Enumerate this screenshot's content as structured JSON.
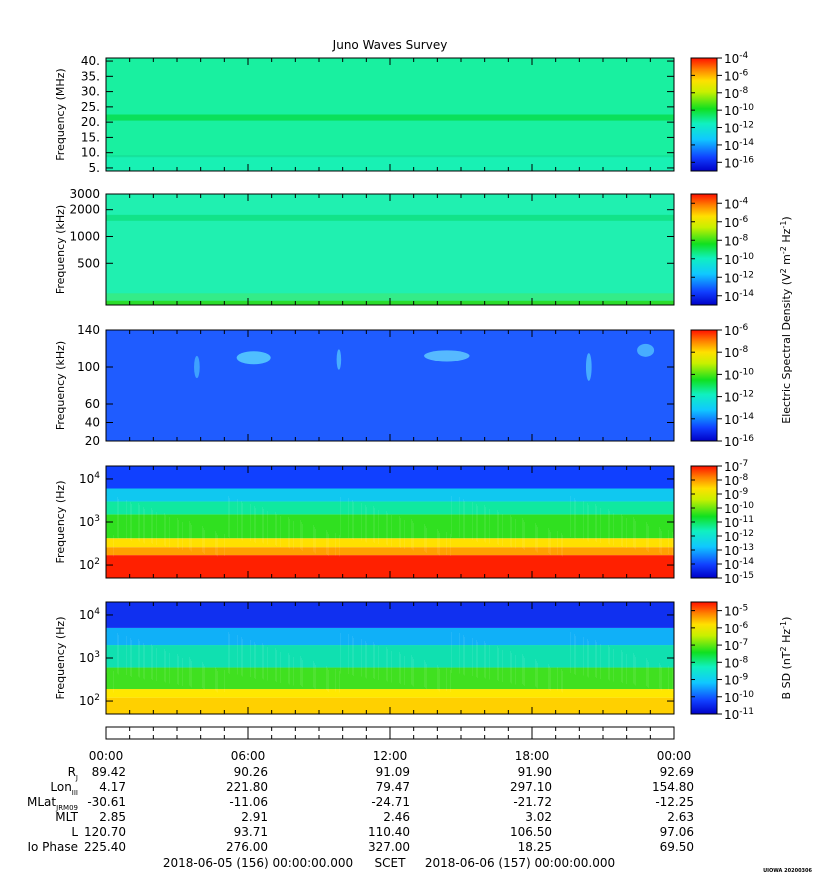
{
  "chart_data": {
    "type": "heatmap",
    "title": "Juno Waves Survey",
    "panels": [
      {
        "ylabel": "Frequency (MHz)",
        "yscale": "linear",
        "ylim": [
          4,
          41
        ],
        "yticks": [
          {
            "v": 5,
            "label": "5."
          },
          {
            "v": 10,
            "label": "10."
          },
          {
            "v": 15,
            "label": "15."
          },
          {
            "v": 20,
            "label": "20."
          },
          {
            "v": 25,
            "label": "25."
          },
          {
            "v": 30,
            "label": "30."
          },
          {
            "v": 35,
            "label": "35."
          },
          {
            "v": 40,
            "label": "40."
          }
        ],
        "background": "#19f0a0",
        "bands": [
          {
            "from": 4,
            "to": 9,
            "color": "#18f2c8",
            "opacity": 0.5
          },
          {
            "from": 20.5,
            "to": 22.5,
            "color": "#0ae05a",
            "opacity": 1
          },
          {
            "from": 8.5,
            "to": 9.2,
            "color": "#14d890",
            "opacity": 0.6
          }
        ],
        "colorbar": {
          "min": -17,
          "max": -4,
          "ticks": [
            {
              "v": -4,
              "base": "10",
              "exp": "-4"
            },
            {
              "v": -6,
              "base": "10",
              "exp": "-6"
            },
            {
              "v": -8,
              "base": "10",
              "exp": "-8"
            },
            {
              "v": -10,
              "base": "10",
              "exp": "-10"
            },
            {
              "v": -12,
              "base": "10",
              "exp": "-12"
            },
            {
              "v": -14,
              "base": "10",
              "exp": "-14"
            },
            {
              "v": -16,
              "base": "10",
              "exp": "-16"
            }
          ]
        }
      },
      {
        "ylabel": "Frequency (kHz)",
        "yscale": "log",
        "ylim": [
          170,
          3000
        ],
        "yticks": [
          {
            "v": 3000,
            "label": "3000"
          },
          {
            "v": 2000,
            "label": "2000"
          },
          {
            "v": 1000,
            "label": "1000"
          },
          {
            "v": 500,
            "label": "500"
          }
        ],
        "background": "#20f0b0",
        "bands": [
          {
            "from": 1500,
            "to": 1750,
            "color": "#0fe080",
            "opacity": 0.8
          },
          {
            "from": 170,
            "to": 190,
            "color": "#2bdc2b",
            "opacity": 1
          },
          {
            "from": 190,
            "to": 230,
            "color": "#48e860",
            "opacity": 0.5
          }
        ],
        "colorbar": {
          "min": -15,
          "max": -3,
          "label_prefix": "Electric Spectral Density (V",
          "label_units": "m",
          "label_hz": "Hz",
          "label_sup1": "2",
          "label_sup2": "-2",
          "label_sup3": "-1",
          "ticks": [
            {
              "v": -4,
              "base": "10",
              "exp": "-4"
            },
            {
              "v": -6,
              "base": "10",
              "exp": "-6"
            },
            {
              "v": -8,
              "base": "10",
              "exp": "-8"
            },
            {
              "v": -10,
              "base": "10",
              "exp": "-10"
            },
            {
              "v": -12,
              "base": "10",
              "exp": "-12"
            },
            {
              "v": -14,
              "base": "10",
              "exp": "-14"
            }
          ]
        }
      },
      {
        "ylabel": "Frequency (kHz)",
        "yscale": "linear",
        "ylim": [
          20,
          140
        ],
        "yticks": [
          {
            "v": 20,
            "label": "20"
          },
          {
            "v": 40,
            "label": "40"
          },
          {
            "v": 60,
            "label": "60"
          },
          {
            "v": 100,
            "label": "100"
          },
          {
            "v": 140,
            "label": "140"
          }
        ],
        "background": "#1f5cff",
        "bands": [],
        "blobs": [
          {
            "x": 0.26,
            "y": 110,
            "w": 0.06,
            "h": 14,
            "color": "#60e0ff"
          },
          {
            "x": 0.6,
            "y": 112,
            "w": 0.08,
            "h": 12,
            "color": "#6ad8ff"
          },
          {
            "x": 0.41,
            "y": 108,
            "w": 0.008,
            "h": 22,
            "color": "#55c8ff"
          },
          {
            "x": 0.85,
            "y": 100,
            "w": 0.01,
            "h": 30,
            "color": "#55c8ff"
          },
          {
            "x": 0.95,
            "y": 118,
            "w": 0.03,
            "h": 14,
            "color": "#55c8ff"
          },
          {
            "x": 0.16,
            "y": 100,
            "w": 0.01,
            "h": 24,
            "color": "#4ab8ff"
          }
        ],
        "colorbar": {
          "min": -16,
          "max": -6,
          "ticks": [
            {
              "v": -6,
              "base": "10",
              "exp": "-6"
            },
            {
              "v": -8,
              "base": "10",
              "exp": "-8"
            },
            {
              "v": -10,
              "base": "10",
              "exp": "-10"
            },
            {
              "v": -12,
              "base": "10",
              "exp": "-12"
            },
            {
              "v": -14,
              "base": "10",
              "exp": "-14"
            },
            {
              "v": -16,
              "base": "10",
              "exp": "-16"
            }
          ]
        }
      },
      {
        "ylabel": "Frequency (Hz)",
        "yscale": "log",
        "ylim": [
          50,
          20000
        ],
        "yticks": [
          {
            "v": 10000,
            "base": "10",
            "exp": "4"
          },
          {
            "v": 1000,
            "base": "10",
            "exp": "3"
          },
          {
            "v": 100,
            "base": "10",
            "exp": "2"
          }
        ],
        "layers": [
          {
            "from": 50,
            "to": 170,
            "color": "#ff2000"
          },
          {
            "from": 170,
            "to": 260,
            "color": "#ffa000"
          },
          {
            "from": 260,
            "to": 420,
            "color": "#ffe000"
          },
          {
            "from": 420,
            "to": 1500,
            "color": "#30e020"
          },
          {
            "from": 1500,
            "to": 3000,
            "color": "#10e8a0"
          },
          {
            "from": 3000,
            "to": 6000,
            "color": "#10c8f0"
          },
          {
            "from": 6000,
            "to": 20000,
            "color": "#1040ff"
          }
        ],
        "colorbar": {
          "min": -15,
          "max": -7,
          "ticks": [
            {
              "v": -7,
              "base": "10",
              "exp": "-7"
            },
            {
              "v": -8,
              "base": "10",
              "exp": "-8"
            },
            {
              "v": -9,
              "base": "10",
              "exp": "-9"
            },
            {
              "v": -10,
              "base": "10",
              "exp": "-10"
            },
            {
              "v": -11,
              "base": "10",
              "exp": "-11"
            },
            {
              "v": -12,
              "base": "10",
              "exp": "-12"
            },
            {
              "v": -13,
              "base": "10",
              "exp": "-13"
            },
            {
              "v": -14,
              "base": "10",
              "exp": "-14"
            },
            {
              "v": -15,
              "base": "10",
              "exp": "-15"
            }
          ]
        }
      },
      {
        "ylabel": "Frequency (Hz)",
        "yscale": "log",
        "ylim": [
          50,
          20000
        ],
        "yticks": [
          {
            "v": 10000,
            "base": "10",
            "exp": "4"
          },
          {
            "v": 1000,
            "base": "10",
            "exp": "3"
          },
          {
            "v": 100,
            "base": "10",
            "exp": "2"
          }
        ],
        "layers": [
          {
            "from": 50,
            "to": 120,
            "color": "#ffd000"
          },
          {
            "from": 120,
            "to": 190,
            "color": "#ffe800"
          },
          {
            "from": 190,
            "to": 600,
            "color": "#40e020"
          },
          {
            "from": 600,
            "to": 2000,
            "color": "#10e0b0"
          },
          {
            "from": 2000,
            "to": 5000,
            "color": "#10b0f8"
          },
          {
            "from": 5000,
            "to": 20000,
            "color": "#1030f0"
          }
        ],
        "colorbar": {
          "min": -11,
          "max": -4.5,
          "label": "B SD (nT",
          "label_sup1": "2",
          "label_hz": "Hz",
          "label_sup2": "-1",
          "ticks": [
            {
              "v": -5,
              "base": "10",
              "exp": "-5"
            },
            {
              "v": -6,
              "base": "10",
              "exp": "-6"
            },
            {
              "v": -7,
              "base": "10",
              "exp": "-7"
            },
            {
              "v": -8,
              "base": "10",
              "exp": "-8"
            },
            {
              "v": -9,
              "base": "10",
              "exp": "-9"
            },
            {
              "v": -10,
              "base": "10",
              "exp": "-10"
            },
            {
              "v": -11,
              "base": "10",
              "exp": "-11"
            }
          ]
        }
      }
    ],
    "x_ticks": [
      "00:00",
      "06:00",
      "12:00",
      "18:00",
      "00:00"
    ],
    "ephemeris": [
      {
        "label": "R",
        "sub": "J",
        "values": [
          "89.42",
          "90.26",
          "91.09",
          "91.90",
          "92.69"
        ]
      },
      {
        "label": "Lon",
        "sub": "III",
        "values": [
          "4.17",
          "221.80",
          "79.47",
          "297.10",
          "154.80"
        ]
      },
      {
        "label": "MLat",
        "sub": "JRM09",
        "values": [
          "-30.61",
          "-11.06",
          "-24.71",
          "-21.72",
          "-12.25"
        ]
      },
      {
        "label": "MLT",
        "sub": "",
        "values": [
          "2.85",
          "2.91",
          "2.46",
          "3.02",
          "2.63"
        ]
      },
      {
        "label": "L",
        "sub": "",
        "values": [
          "120.70",
          "93.71",
          "110.40",
          "106.50",
          "97.06"
        ]
      },
      {
        "label": "Io Phase",
        "sub": "",
        "values": [
          "225.40",
          "276.00",
          "327.00",
          "18.25",
          "69.50"
        ]
      }
    ],
    "time_start": "2018-06-05 (156) 00:00:00.000",
    "time_label": "SCET",
    "time_end": "2018-06-06 (157) 00:00:00.000",
    "stamp": "UIOWA 20200306"
  }
}
